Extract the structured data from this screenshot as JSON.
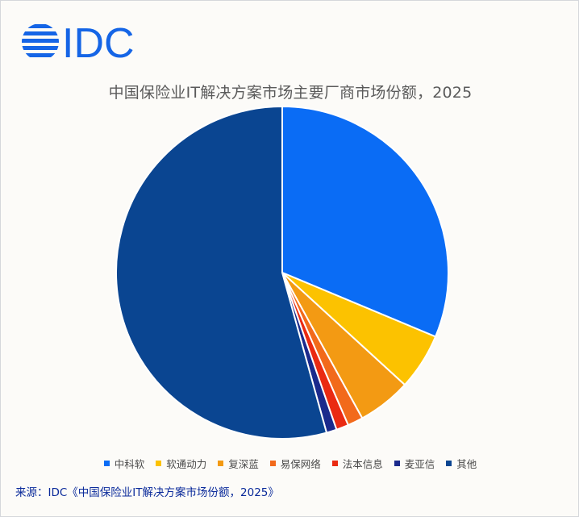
{
  "chart_data": {
    "type": "pie",
    "title": "中国保险业IT解决方案市场主要厂商市场份额，2025",
    "categories": [
      "中科软",
      "软通动力",
      "复深蓝",
      "易保网络",
      "法本信息",
      "麦亚信",
      "其他"
    ],
    "values": [
      31.3,
      5.5,
      5.2,
      1.5,
      1.2,
      1.0,
      54.3
    ],
    "colors": [
      "#0a6cf5",
      "#fcc200",
      "#f39a13",
      "#f26a1b",
      "#ea2a12",
      "#1b2a8c",
      "#0a4591"
    ],
    "legend_position": "bottom",
    "source": "来源：IDC《中国保险业IT解决方案市场份额，2025》"
  },
  "logo": {
    "text": "IDC",
    "color": "#1565e6"
  }
}
